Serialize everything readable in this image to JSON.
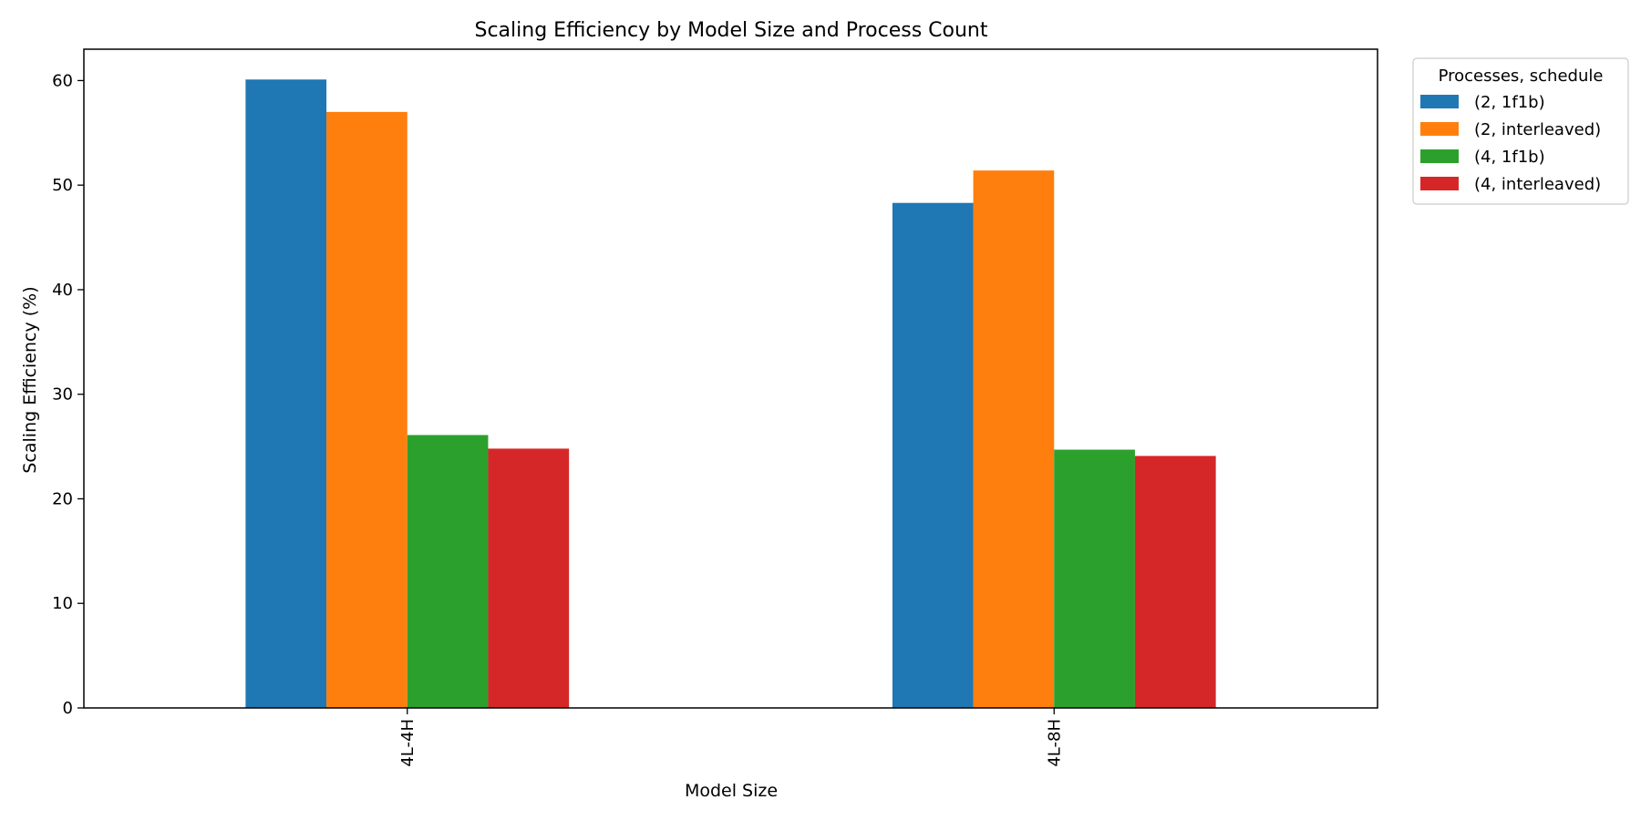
{
  "chart_data": {
    "type": "bar",
    "title": "Scaling Efficiency by Model Size and Process Count",
    "xlabel": "Model Size",
    "ylabel": "Scaling Efficiency (%)",
    "categories": [
      "4L-4H",
      "4L-8H"
    ],
    "ylim": [
      0,
      63
    ],
    "yticks": [
      0,
      10,
      20,
      30,
      40,
      50,
      60
    ],
    "grid": false,
    "legend": {
      "title": "Processes, schedule",
      "placement": "outside top-right"
    },
    "series": [
      {
        "name": "(2, 1f1b)",
        "color": "#1f77b4",
        "values": [
          60.1,
          48.3
        ]
      },
      {
        "name": "(2, interleaved)",
        "color": "#ff7f0e",
        "values": [
          57.0,
          51.4
        ]
      },
      {
        "name": "(4, 1f1b)",
        "color": "#2ca02c",
        "values": [
          26.1,
          24.7
        ]
      },
      {
        "name": "(4, interleaved)",
        "color": "#d62728",
        "values": [
          24.8,
          24.1
        ]
      }
    ]
  }
}
